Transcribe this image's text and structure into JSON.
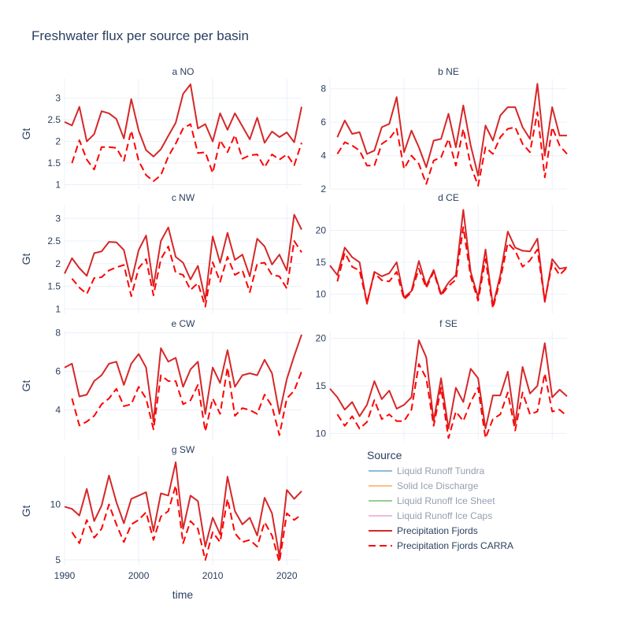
{
  "chart_data": {
    "type": "line",
    "title": "Freshwater flux per source per basin",
    "xlabel": "time",
    "ylabel": "Gt",
    "x_ticks": [
      1990,
      2000,
      2010,
      2020
    ],
    "legend_title": "Source",
    "legend": [
      {
        "name": "Liquid Runoff Tundra",
        "color": "#1f77b4",
        "dash": "solid",
        "hidden": true
      },
      {
        "name": "Solid Ice Discharge",
        "color": "#ff7f0e",
        "dash": "solid",
        "hidden": true
      },
      {
        "name": "Liquid Runoff Ice Sheet",
        "color": "#2ca02c",
        "dash": "solid",
        "hidden": true
      },
      {
        "name": "Liquid Runoff Ice Caps",
        "color": "#e377c2",
        "dash": "solid",
        "hidden": true
      },
      {
        "name": "Precipitation Fjords",
        "color": "#d62728",
        "dash": "solid",
        "hidden": false
      },
      {
        "name": "Precipitation Fjords CARRA",
        "color": "#ff0000",
        "dash": "dash",
        "hidden": false
      }
    ],
    "x": [
      1990,
      1991,
      1992,
      1993,
      1994,
      1995,
      1996,
      1997,
      1998,
      1999,
      2000,
      2001,
      2002,
      2003,
      2004,
      2005,
      2006,
      2007,
      2008,
      2009,
      2010,
      2011,
      2012,
      2013,
      2014,
      2015,
      2016,
      2017,
      2018,
      2019,
      2020,
      2021,
      2022
    ],
    "panels": [
      {
        "title": "a NO",
        "yticks": [
          1,
          1.5,
          2,
          2.5,
          3
        ],
        "ylim": [
          0.9,
          3.45
        ],
        "series": [
          {
            "name": "Precipitation Fjords",
            "values": [
              2.45,
              2.37,
              2.8,
              2.0,
              2.17,
              2.7,
              2.65,
              2.52,
              2.07,
              2.98,
              2.25,
              1.8,
              1.65,
              1.82,
              2.13,
              2.43,
              3.1,
              3.32,
              2.3,
              2.4,
              2.0,
              2.65,
              2.27,
              2.65,
              2.35,
              2.05,
              2.55,
              1.97,
              2.23,
              2.1,
              2.21,
              1.98,
              2.8
            ]
          },
          {
            "name": "Precipitation Fjords CARRA",
            "values": [
              null,
              1.5,
              2.03,
              1.58,
              1.35,
              1.87,
              1.87,
              1.85,
              1.55,
              2.25,
              1.55,
              1.22,
              1.08,
              1.22,
              1.65,
              1.95,
              2.3,
              2.4,
              1.73,
              1.75,
              1.27,
              2.03,
              1.75,
              2.15,
              1.6,
              1.68,
              1.7,
              1.4,
              1.7,
              1.58,
              1.7,
              1.45,
              1.97
            ]
          }
        ]
      },
      {
        "title": "b NE",
        "yticks": [
          2,
          4,
          6,
          8
        ],
        "ylim": [
          2,
          8.6
        ],
        "series": [
          {
            "name": "Precipitation Fjords",
            "values": [
              null,
              5.1,
              6.1,
              5.3,
              5.4,
              4.1,
              4.3,
              5.7,
              5.9,
              7.5,
              4.2,
              5.5,
              4.5,
              3.3,
              4.9,
              5.0,
              6.5,
              4.5,
              7.0,
              4.6,
              2.8,
              5.8,
              4.9,
              6.4,
              6.9,
              6.9,
              5.7,
              5.0,
              8.3,
              4.0,
              6.9,
              5.2,
              5.2
            ]
          },
          {
            "name": "Precipitation Fjords CARRA",
            "values": [
              null,
              4.1,
              4.8,
              4.6,
              4.3,
              3.4,
              3.4,
              4.7,
              5.0,
              5.6,
              3.2,
              4.0,
              3.5,
              2.3,
              3.7,
              3.9,
              5.0,
              3.4,
              5.6,
              3.4,
              2.2,
              4.5,
              4.1,
              5.1,
              5.6,
              5.7,
              4.7,
              4.2,
              6.6,
              2.7,
              5.7,
              4.6,
              4.1
            ]
          }
        ]
      },
      {
        "title": "c NW",
        "yticks": [
          1,
          1.5,
          2,
          2.5,
          3
        ],
        "ylim": [
          0.9,
          3.3
        ],
        "series": [
          {
            "name": "Precipitation Fjords",
            "values": [
              1.78,
              2.12,
              1.9,
              1.73,
              2.23,
              2.27,
              2.48,
              2.47,
              2.3,
              1.6,
              2.3,
              2.62,
              1.5,
              2.5,
              2.8,
              2.15,
              2.02,
              1.65,
              1.95,
              1.2,
              2.6,
              2.02,
              2.68,
              2.08,
              2.2,
              1.72,
              2.55,
              2.38,
              1.98,
              2.2,
              1.85,
              3.08,
              2.75
            ]
          },
          {
            "name": "Precipitation Fjords CARRA",
            "values": [
              null,
              1.67,
              1.47,
              1.33,
              1.68,
              1.7,
              1.85,
              1.92,
              1.97,
              1.28,
              1.9,
              2.1,
              1.3,
              2.1,
              2.38,
              1.8,
              1.75,
              1.42,
              1.57,
              1.05,
              2.03,
              1.6,
              2.15,
              1.75,
              1.85,
              1.37,
              2.0,
              2.02,
              1.75,
              1.72,
              1.45,
              2.5,
              2.25
            ]
          }
        ]
      },
      {
        "title": "d CE",
        "yticks": [
          10,
          15,
          20
        ],
        "ylim": [
          7,
          24
        ],
        "series": [
          {
            "name": "Precipitation Fjords",
            "values": [
              14.5,
              13.0,
              17.3,
              15.8,
              15.0,
              8.5,
              13.5,
              12.8,
              13.3,
              15.0,
              9.5,
              10.5,
              15.2,
              11.3,
              13.8,
              10.0,
              11.8,
              13.0,
              23.2,
              13.5,
              9.5,
              17.0,
              8.2,
              13.0,
              19.8,
              17.3,
              16.8,
              16.7,
              18.7,
              8.8,
              15.5,
              14.0,
              14.2
            ]
          },
          {
            "name": "Precipitation Fjords CARRA",
            "values": [
              null,
              12.0,
              16.5,
              14.3,
              13.7,
              8.7,
              13.3,
              12.2,
              12.0,
              13.5,
              9.2,
              10.3,
              14.0,
              11.0,
              13.5,
              9.8,
              11.3,
              12.3,
              20.5,
              12.8,
              9.0,
              15.5,
              7.8,
              12.3,
              18.0,
              16.8,
              14.3,
              15.3,
              17.0,
              9.0,
              14.8,
              13.0,
              14.2
            ]
          }
        ]
      },
      {
        "title": "e CW",
        "yticks": [
          4,
          6,
          8
        ],
        "ylim": [
          2.4,
          8.1
        ],
        "series": [
          {
            "name": "Precipitation Fjords",
            "values": [
              6.2,
              6.4,
              4.7,
              4.8,
              5.5,
              5.8,
              6.4,
              6.5,
              5.3,
              6.4,
              6.9,
              6.2,
              3.4,
              7.2,
              6.5,
              6.7,
              5.2,
              6.1,
              6.5,
              3.8,
              6.2,
              5.4,
              7.1,
              5.2,
              5.8,
              5.9,
              5.8,
              6.6,
              5.9,
              3.8,
              5.6,
              6.8,
              7.9
            ]
          },
          {
            "name": "Precipitation Fjords CARRA",
            "values": [
              null,
              4.6,
              3.2,
              3.4,
              3.7,
              4.3,
              4.6,
              5.1,
              4.2,
              4.3,
              5.2,
              4.6,
              3.0,
              5.8,
              5.5,
              5.5,
              4.3,
              4.5,
              5.3,
              2.9,
              4.6,
              3.8,
              6.2,
              3.7,
              4.1,
              4.0,
              3.8,
              4.8,
              4.2,
              2.7,
              4.6,
              5.0,
              6.0
            ]
          }
        ]
      },
      {
        "title": "f SE",
        "yticks": [
          10,
          15,
          20
        ],
        "ylim": [
          9.2,
          20.8
        ],
        "series": [
          {
            "name": "Precipitation Fjords",
            "values": [
              14.7,
              13.8,
              12.5,
              13.3,
              11.8,
              13.0,
              15.5,
              13.6,
              14.5,
              12.6,
              13.0,
              13.8,
              19.8,
              18.0,
              11.3,
              15.8,
              10.5,
              14.8,
              13.3,
              16.8,
              15.8,
              10.5,
              14.0,
              14.0,
              16.5,
              11.0,
              17.0,
              14.2,
              15.0,
              19.5,
              13.8,
              14.6,
              13.9
            ]
          },
          {
            "name": "Precipitation Fjords CARRA",
            "values": [
              null,
              12.0,
              10.8,
              11.8,
              10.5,
              11.2,
              13.5,
              11.5,
              12.0,
              11.3,
              11.3,
              12.5,
              17.3,
              15.8,
              10.8,
              14.8,
              9.5,
              12.3,
              11.3,
              13.3,
              14.8,
              9.5,
              11.5,
              12.0,
              14.3,
              10.3,
              14.3,
              12.0,
              12.3,
              16.3,
              12.3,
              12.5,
              11.8
            ]
          }
        ]
      },
      {
        "title": "g SW",
        "yticks": [
          5,
          10
        ],
        "ylim": [
          4.5,
          14.3
        ],
        "series": [
          {
            "name": "Precipitation Fjords",
            "values": [
              9.8,
              9.6,
              9.0,
              11.4,
              8.5,
              9.9,
              12.6,
              10.2,
              8.3,
              10.5,
              10.8,
              11.1,
              7.6,
              11.0,
              10.8,
              13.8,
              7.8,
              10.8,
              10.3,
              6.2,
              8.8,
              7.3,
              12.5,
              9.4,
              8.2,
              8.8,
              7.2,
              10.6,
              9.2,
              5.3,
              11.3,
              10.5,
              11.2
            ]
          },
          {
            "name": "Precipitation Fjords CARRA",
            "values": [
              null,
              7.5,
              6.5,
              8.6,
              7.0,
              7.8,
              10.0,
              8.2,
              6.6,
              8.2,
              8.6,
              9.3,
              6.8,
              8.9,
              9.4,
              11.7,
              6.5,
              8.5,
              7.8,
              5.0,
              7.5,
              6.6,
              10.5,
              7.4,
              6.6,
              6.8,
              6.2,
              8.4,
              7.2,
              4.8,
              9.2,
              8.6,
              9.1
            ]
          }
        ]
      }
    ]
  }
}
